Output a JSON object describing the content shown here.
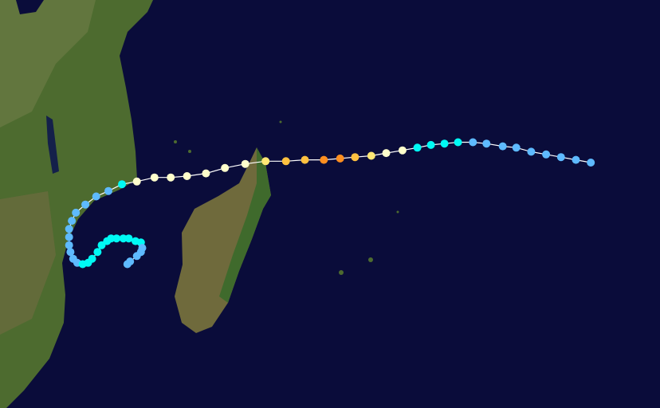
{
  "track": {
    "lon": [
      73.6,
      72.5,
      71.4,
      70.3,
      69.2,
      68.1,
      67.1,
      65.9,
      64.9,
      63.8,
      62.8,
      61.8,
      60.8,
      59.7,
      58.5,
      57.4,
      56.2,
      55.1,
      53.9,
      52.5,
      51.1,
      49.6,
      48.1,
      46.6,
      45.2,
      43.8,
      42.6,
      41.4,
      40.1,
      39.0,
      38.0,
      37.1,
      36.3,
      35.6,
      35.3,
      35.1,
      35.1,
      35.1,
      35.2,
      35.4,
      35.7,
      36.1,
      36.5,
      36.8,
      37.2,
      37.5,
      37.9,
      38.2,
      38.6,
      39.1,
      39.5,
      40.0,
      40.4,
      40.5,
      40.4,
      40.1,
      39.6,
      39.4
    ],
    "lat": [
      -13.0,
      -12.8,
      -12.6,
      -12.4,
      -12.2,
      -11.9,
      -11.8,
      -11.6,
      -11.5,
      -11.5,
      -11.6,
      -11.7,
      -11.9,
      -12.1,
      -12.3,
      -12.5,
      -12.6,
      -12.7,
      -12.8,
      -12.8,
      -12.9,
      -12.9,
      -13.1,
      -13.4,
      -13.8,
      -14.0,
      -14.1,
      -14.1,
      -14.4,
      -14.6,
      -15.1,
      -15.5,
      -16.1,
      -16.7,
      -17.3,
      -17.9,
      -18.5,
      -19.1,
      -19.6,
      -20.1,
      -20.4,
      -20.5,
      -20.4,
      -20.1,
      -19.6,
      -19.1,
      -18.8,
      -18.6,
      -18.6,
      -18.6,
      -18.6,
      -18.8,
      -18.9,
      -19.3,
      -19.6,
      -19.9,
      -20.3,
      -20.5
    ],
    "category": [
      "TD",
      "TD",
      "TD",
      "TD",
      "TD",
      "TD",
      "TD",
      "TD",
      "TD",
      "TS",
      "TS",
      "TS",
      "TS",
      "C1",
      "C1",
      "C2",
      "C3",
      "C4",
      "C4",
      "C3",
      "C3",
      "C2",
      "C1",
      "C1",
      "C1",
      "C1",
      "C1",
      "C1",
      "C1",
      "TS",
      "TD",
      "TD",
      "TD",
      "TD",
      "TD",
      "TD",
      "TD",
      "TD",
      "TD",
      "TD",
      "TD",
      "TS",
      "TS",
      "TS",
      "TS",
      "TS",
      "TS",
      "TS",
      "TS",
      "TS",
      "TS",
      "TS",
      "TS",
      "TD",
      "TD",
      "TD",
      "TD",
      "TD"
    ]
  },
  "category_colors": {
    "TD": "#5ebaff",
    "TS": "#00faf4",
    "C1": "#ffffcc",
    "C2": "#ffe775",
    "C3": "#ffc140",
    "C4": "#ff8f20"
  }
}
